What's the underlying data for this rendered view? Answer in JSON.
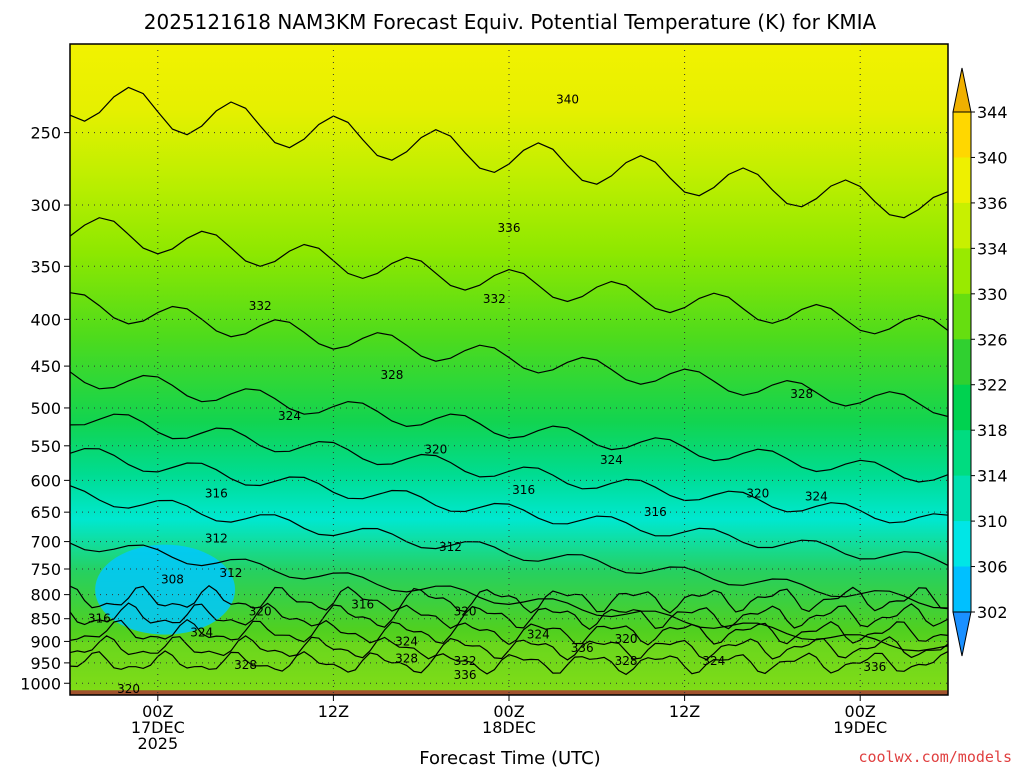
{
  "chart_data": {
    "type": "heatmap",
    "title": "2025121618 NAM3KM Forecast Equiv. Potential Temperature (K) for KMIA",
    "xlabel": "Forecast Time (UTC)",
    "ylabel": "",
    "y_ticks": [
      "250",
      "300",
      "350",
      "400",
      "450",
      "500",
      "550",
      "600",
      "650",
      "700",
      "750",
      "800",
      "850",
      "900",
      "950",
      "1000"
    ],
    "y_tick_values": [
      250,
      300,
      350,
      400,
      450,
      500,
      550,
      600,
      650,
      700,
      750,
      800,
      850,
      900,
      950,
      1000
    ],
    "ylim": [
      200,
      1030
    ],
    "y_axis_units": "hPa",
    "y_scale": "log",
    "xlim_hours": [
      -6,
      54
    ],
    "x_ticks": [
      {
        "hour": 0,
        "lines": [
          "00Z",
          "17DEC",
          "2025"
        ]
      },
      {
        "hour": 12,
        "lines": [
          "12Z"
        ]
      },
      {
        "hour": 24,
        "lines": [
          "00Z",
          "18DEC"
        ]
      },
      {
        "hour": 36,
        "lines": [
          "12Z"
        ]
      },
      {
        "hour": 48,
        "lines": [
          "00Z",
          "19DEC"
        ]
      }
    ],
    "colorbar": {
      "labels": [
        "302",
        "306",
        "310",
        "314",
        "318",
        "322",
        "326",
        "330",
        "334",
        "336",
        "340",
        "344"
      ],
      "levels": [
        302,
        306,
        310,
        314,
        318,
        322,
        326,
        330,
        334,
        336,
        340,
        344
      ],
      "colors": [
        "#1a90ff",
        "#00c0ff",
        "#00e6e6",
        "#00e0b0",
        "#00dc80",
        "#00d250",
        "#30d030",
        "#66de10",
        "#99ea00",
        "#c8f000",
        "#eef000",
        "#ffd700",
        "#f0b000"
      ]
    },
    "contour_interval": 4,
    "contour_labels": [
      {
        "value": "340",
        "hour": 28,
        "hpa": 230
      },
      {
        "value": "336",
        "hour": 24,
        "hpa": 318
      },
      {
        "value": "332",
        "hour": 7,
        "hpa": 387
      },
      {
        "value": "332",
        "hour": 23,
        "hpa": 380
      },
      {
        "value": "328",
        "hour": 16,
        "hpa": 460
      },
      {
        "value": "328",
        "hour": 44,
        "hpa": 483
      },
      {
        "value": "324",
        "hour": 9,
        "hpa": 510
      },
      {
        "value": "324",
        "hour": 31,
        "hpa": 570
      },
      {
        "value": "324",
        "hour": 45,
        "hpa": 625
      },
      {
        "value": "320",
        "hour": 19,
        "hpa": 555
      },
      {
        "value": "320",
        "hour": 41,
        "hpa": 620
      },
      {
        "value": "316",
        "hour": 4,
        "hpa": 620
      },
      {
        "value": "316",
        "hour": 25,
        "hpa": 615
      },
      {
        "value": "316",
        "hour": 34,
        "hpa": 650
      },
      {
        "value": "312",
        "hour": 4,
        "hpa": 695
      },
      {
        "value": "312",
        "hour": 20,
        "hpa": 710
      },
      {
        "value": "312",
        "hour": 5,
        "hpa": 758
      },
      {
        "value": "308",
        "hour": 1,
        "hpa": 770
      },
      {
        "value": "316",
        "hour": -4,
        "hpa": 850
      },
      {
        "value": "316",
        "hour": 14,
        "hpa": 820
      },
      {
        "value": "320",
        "hour": 7,
        "hpa": 835
      },
      {
        "value": "320",
        "hour": 21,
        "hpa": 835
      },
      {
        "value": "324",
        "hour": 3,
        "hpa": 880
      },
      {
        "value": "324",
        "hour": 17,
        "hpa": 900
      },
      {
        "value": "324",
        "hour": 26,
        "hpa": 885
      },
      {
        "value": "328",
        "hour": 6,
        "hpa": 955
      },
      {
        "value": "328",
        "hour": 17,
        "hpa": 940
      },
      {
        "value": "332",
        "hour": 21,
        "hpa": 945
      },
      {
        "value": "336",
        "hour": 21,
        "hpa": 980
      },
      {
        "value": "336",
        "hour": 29,
        "hpa": 915
      },
      {
        "value": "320",
        "hour": 32,
        "hpa": 895
      },
      {
        "value": "328",
        "hour": 32,
        "hpa": 945
      },
      {
        "value": "324",
        "hour": 38,
        "hpa": 945
      },
      {
        "value": "336",
        "hour": 49,
        "hpa": 960
      },
      {
        "value": "320",
        "hour": -2,
        "hpa": 1015
      }
    ]
  },
  "credit": "coolwx.com/models"
}
